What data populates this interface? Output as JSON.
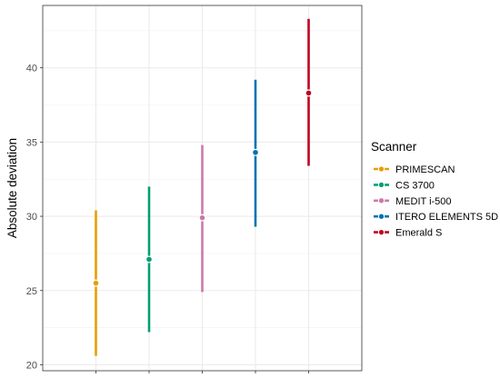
{
  "chart_data": {
    "type": "errorbar",
    "title": "",
    "xlabel": "",
    "ylabel": "Absolute deviation",
    "ylim": [
      19.6,
      44.2
    ],
    "yticks": [
      20,
      25,
      30,
      35,
      40
    ],
    "grid": true,
    "legend": {
      "title": "Scanner",
      "placement": "right"
    },
    "series": [
      {
        "name": "PRIMESCAN",
        "color": "#E69F00",
        "mean": 25.5,
        "lower": 20.6,
        "upper": 30.4
      },
      {
        "name": "CS 3700",
        "color": "#009E73",
        "mean": 27.1,
        "lower": 22.2,
        "upper": 32.0
      },
      {
        "name": "MEDIT i-500",
        "color": "#CC79A7",
        "mean": 29.9,
        "lower": 24.9,
        "upper": 34.8
      },
      {
        "name": "ITERO ELEMENTS 5D",
        "color": "#0072B2",
        "mean": 34.3,
        "lower": 29.3,
        "upper": 39.2
      },
      {
        "name": "Emerald S",
        "color": "#C00020",
        "mean": 38.3,
        "lower": 33.4,
        "upper": 43.3
      }
    ]
  }
}
